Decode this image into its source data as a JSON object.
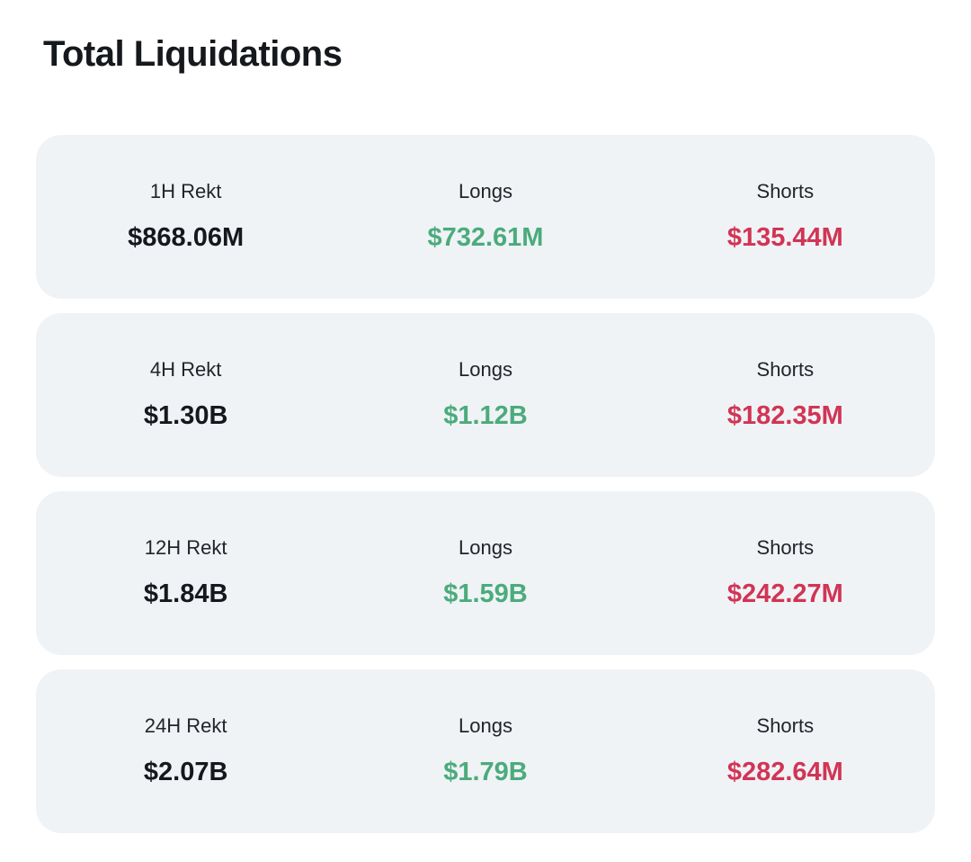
{
  "page": {
    "title": "Total Liquidations"
  },
  "colors": {
    "page_bg": "#ffffff",
    "card_bg": "#eff3f6",
    "total_value": "#15181c",
    "longs_value": "#4bab7c",
    "shorts_value": "#d23455",
    "label_text": "#212529"
  },
  "cards": [
    {
      "period": {
        "label": "1H Rekt",
        "value": "$868.06M"
      },
      "longs": {
        "label": "Longs",
        "value": "$732.61M"
      },
      "shorts": {
        "label": "Shorts",
        "value": "$135.44M"
      }
    },
    {
      "period": {
        "label": "4H Rekt",
        "value": "$1.30B"
      },
      "longs": {
        "label": "Longs",
        "value": "$1.12B"
      },
      "shorts": {
        "label": "Shorts",
        "value": "$182.35M"
      }
    },
    {
      "period": {
        "label": "12H Rekt",
        "value": "$1.84B"
      },
      "longs": {
        "label": "Longs",
        "value": "$1.59B"
      },
      "shorts": {
        "label": "Shorts",
        "value": "$242.27M"
      }
    },
    {
      "period": {
        "label": "24H Rekt",
        "value": "$2.07B"
      },
      "longs": {
        "label": "Longs",
        "value": "$1.79B"
      },
      "shorts": {
        "label": "Shorts",
        "value": "$282.64M"
      }
    }
  ]
}
